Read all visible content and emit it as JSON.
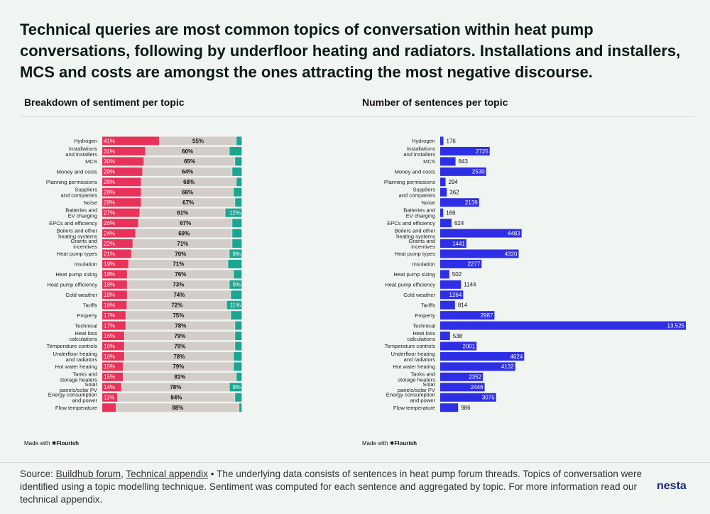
{
  "title": "Technical queries are most common topics of conversation within heat pump conversations, following by underfloor heating and radiators. Installations and installers, MCS and costs are amongst the ones attracting the most negative discourse.",
  "left_subtitle": "Breakdown of sentiment per topic",
  "right_subtitle": "Number of sentences per topic",
  "made_with_prefix": "Made with",
  "made_with_brand": "✱Flourish",
  "footer": {
    "prefix": "Source:",
    "link1": "Buildhub forum",
    "sep": ",",
    "link2": "Technical appendix",
    "rest": " • The underlying data consists of sentences in heat pump forum threads. Topics of conversation were identified using a topic modelling technique. Sentiment was computed for each sentence and aggregated by topic. For more information read our technical appendix."
  },
  "logo": "nesta",
  "colors": {
    "negative": "#e8325a",
    "neutral": "#d3cdc9",
    "positive": "#1aa691",
    "count": "#2e2ee6"
  },
  "chart_data": [
    {
      "type": "bar",
      "orientation": "horizontal",
      "stacked": true,
      "title": "Breakdown of sentiment per topic",
      "categories": [
        "Hydrogen",
        "Installations and installers",
        "MCS",
        "Money and costs",
        "Planning permissions",
        "Suppliers and companies",
        "Noise",
        "Batteries and EV charging",
        "EPCs and efficiency",
        "Boilers and other heating systems",
        "Grants and incentives",
        "Heat pump types",
        "Insulation",
        "Heat pump sizing",
        "Heat pump efficiency",
        "Cold weather",
        "Tariffs",
        "Property",
        "Technical",
        "Heat loss calculations",
        "Temperature controls",
        "Underfloor heating and radiators",
        "Hot water heating",
        "Tanks and storage heaters",
        "Solar panels/solar PV",
        "Energy consumption and power",
        "Flow temperature"
      ],
      "series": [
        {
          "name": "Negative",
          "values": [
            41,
            31,
            30,
            29,
            28,
            28,
            28,
            27,
            26,
            24,
            22,
            21,
            19,
            18,
            18,
            18,
            18,
            17,
            17,
            16,
            16,
            16,
            15,
            15,
            14,
            11,
            10
          ]
        },
        {
          "name": "Neutral",
          "values": [
            55,
            60,
            65,
            64,
            68,
            66,
            67,
            61,
            67,
            69,
            71,
            70,
            71,
            76,
            73,
            74,
            72,
            75,
            78,
            79,
            79,
            78,
            79,
            81,
            78,
            84,
            88
          ]
        },
        {
          "name": "Positive",
          "values": [
            4,
            9,
            5,
            7,
            4,
            6,
            5,
            12,
            7,
            7,
            7,
            9,
            10,
            6,
            9,
            8,
            11,
            8,
            5,
            5,
            5,
            6,
            6,
            4,
            9,
            5,
            2
          ]
        }
      ],
      "negative_labels": [
        "41%",
        "31%",
        "30%",
        "29%",
        "28%",
        "28%",
        "28%",
        "27%",
        "26%",
        "24%",
        "22%",
        "21%",
        "19%",
        "18%",
        "18%",
        "18%",
        "18%",
        "17%",
        "17%",
        "16%",
        "16%",
        "16%",
        "15%",
        "15%",
        "14%",
        "11%",
        ""
      ],
      "neutral_labels": [
        "55%",
        "60%",
        "65%",
        "64%",
        "68%",
        "66%",
        "67%",
        "61%",
        "67%",
        "69%",
        "71%",
        "70%",
        "71%",
        "76%",
        "73%",
        "74%",
        "72%",
        "75%",
        "78%",
        "79%",
        "79%",
        "78%",
        "79%",
        "81%",
        "78%",
        "84%",
        "88%"
      ],
      "positive_labels": [
        "",
        "",
        "",
        "",
        "",
        "",
        "",
        "12%",
        "",
        "",
        "",
        "9%",
        "",
        "",
        "9%",
        "",
        "11%",
        "",
        "",
        "",
        "",
        "",
        "",
        "",
        "9%",
        "",
        ""
      ],
      "xlim": [
        0,
        100
      ]
    },
    {
      "type": "bar",
      "orientation": "horizontal",
      "title": "Number of sentences per topic",
      "categories": [
        "Hydrogen",
        "Installations and installers",
        "MCS",
        "Money and costs",
        "Planning permissions",
        "Suppliers and companies",
        "Noise",
        "Batteries and EV charging",
        "EPCs and efficiency",
        "Boilers and other heating systems",
        "Grants and incentives",
        "Heat pump types",
        "Insulation",
        "Heat pump sizing",
        "Heat pump efficiency",
        "Cold weather",
        "Tariffs",
        "Property",
        "Technical",
        "Heat loss calculations",
        "Temperature controls",
        "Underfloor heating and radiators",
        "Hot water heating",
        "Tanks and storage heaters",
        "Solar panels/solar PV",
        "Energy consumption and power",
        "Flow temperature"
      ],
      "values": [
        176,
        2725,
        843,
        2530,
        294,
        362,
        2139,
        166,
        624,
        4483,
        1441,
        4320,
        2277,
        502,
        1144,
        1264,
        814,
        2987,
        13525,
        538,
        2001,
        4624,
        4132,
        2352,
        2446,
        3075,
        986
      ],
      "value_labels": [
        "176",
        "2725",
        "843",
        "2530",
        "294",
        "362",
        "2139",
        "166",
        "624",
        "4483",
        "1441",
        "4320",
        "2277",
        "502",
        "1144",
        "1264",
        "814",
        "2987",
        "13,525",
        "538",
        "2001",
        "4624",
        "4132",
        "2352",
        "2446",
        "3075",
        "986"
      ],
      "xlim": [
        0,
        13525
      ]
    }
  ]
}
